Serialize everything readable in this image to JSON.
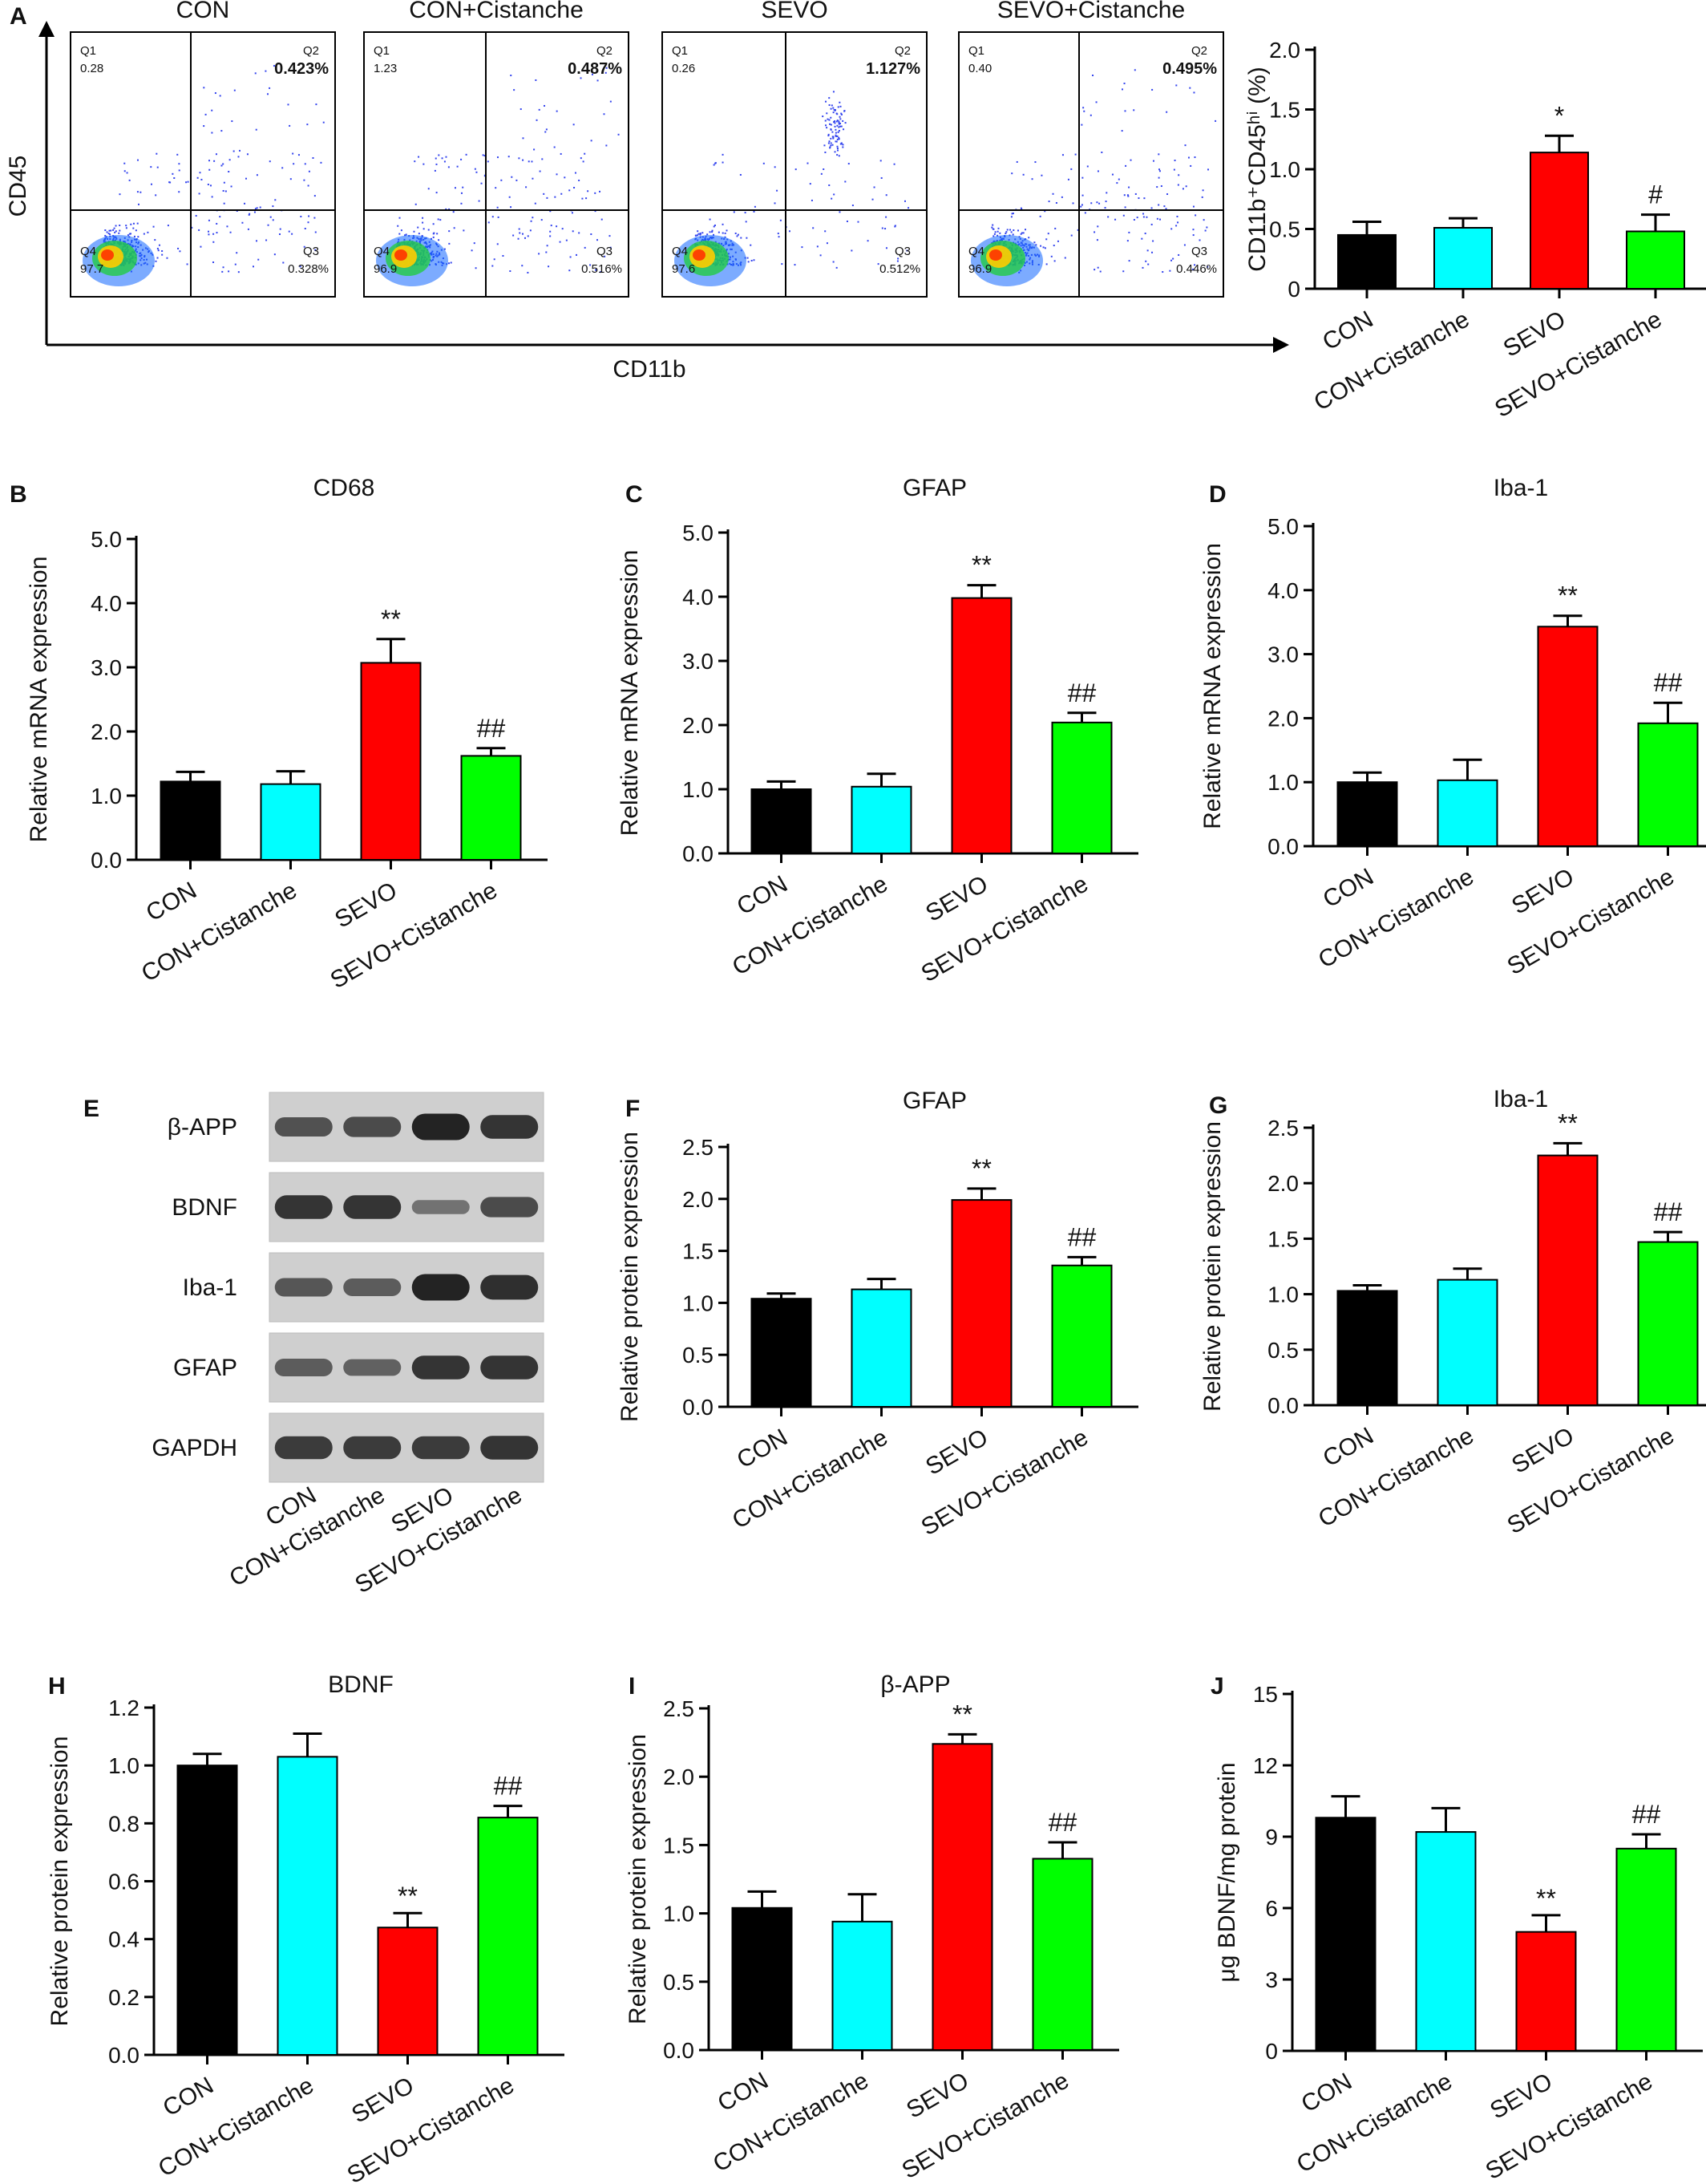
{
  "figure": {
    "panel_letters": [
      "A",
      "B",
      "C",
      "D",
      "E",
      "F",
      "G",
      "H",
      "I",
      "J"
    ],
    "flow": {
      "y_axis_label": "CD45",
      "x_axis_label": "CD11b",
      "plots": [
        {
          "group": "CON",
          "q1": "0.28",
          "q2": "0.423%",
          "q3": "0.328%",
          "q4": "97.7"
        },
        {
          "group": "CON+Cistanche",
          "q1": "1.23",
          "q2": "0.487%",
          "q3": "0.516%",
          "q4": "96.9"
        },
        {
          "group": "SEVO",
          "q1": "0.26",
          "q2": "1.127%",
          "q3": "0.512%",
          "q4": "97.6"
        },
        {
          "group": "SEVO+Cistanche",
          "q1": "0.40",
          "q2": "0.495%",
          "q3": "0.446%",
          "q4": "96.9"
        }
      ]
    },
    "western": {
      "bands": [
        "β-APP",
        "BDNF",
        "Iba-1",
        "GFAP",
        "GAPDH"
      ],
      "lane_labels": [
        "CON",
        "CON+Cistanche",
        "SEVO",
        "SEVO+Cistanche"
      ]
    }
  },
  "colors": {
    "CON": "#000000",
    "CON+Cistanche": "#00ffff",
    "SEVO": "#ff0000",
    "SEVO+Cistanche": "#00ff00",
    "q2_text": "#ff0000",
    "dot": "#3344ee"
  },
  "chart_data": [
    {
      "panel": "A",
      "type": "bar",
      "title": "",
      "ylabel": "CD11b⁺CD45ʰⁱ (%)",
      "categories": [
        "CON",
        "CON+Cistanche",
        "SEVO",
        "SEVO+Cistanche"
      ],
      "values": [
        0.45,
        0.51,
        1.14,
        0.48
      ],
      "errors": [
        0.11,
        0.08,
        0.14,
        0.14
      ],
      "annotations": [
        "",
        "",
        "*",
        "#"
      ],
      "ylim": [
        0,
        2.0
      ],
      "ticks": [
        "0",
        "0.5",
        "1.0",
        "1.5",
        "2.0"
      ]
    },
    {
      "panel": "B",
      "type": "bar",
      "title": "CD68",
      "ylabel": "Relative mRNA expression",
      "categories": [
        "CON",
        "CON+Cistanche",
        "SEVO",
        "SEVO+Cistanche"
      ],
      "values": [
        1.22,
        1.18,
        3.07,
        1.62
      ],
      "errors": [
        0.15,
        0.2,
        0.37,
        0.12
      ],
      "annotations": [
        "",
        "",
        "**",
        "##"
      ],
      "ylim": [
        0,
        5.0
      ],
      "ticks": [
        "0.0",
        "1.0",
        "2.0",
        "3.0",
        "4.0",
        "5.0"
      ]
    },
    {
      "panel": "C",
      "type": "bar",
      "title": "GFAP",
      "ylabel": "Relative mRNA expression",
      "categories": [
        "CON",
        "CON+Cistanche",
        "SEVO",
        "SEVO+Cistanche"
      ],
      "values": [
        1.0,
        1.04,
        3.98,
        2.04
      ],
      "errors": [
        0.12,
        0.2,
        0.2,
        0.15
      ],
      "annotations": [
        "",
        "",
        "**",
        "##"
      ],
      "ylim": [
        0,
        5.0
      ],
      "ticks": [
        "0.0",
        "1.0",
        "2.0",
        "3.0",
        "4.0",
        "5.0"
      ]
    },
    {
      "panel": "D",
      "type": "bar",
      "title": "Iba-1",
      "ylabel": "Relative mRNA expression",
      "categories": [
        "CON",
        "CON+Cistanche",
        "SEVO",
        "SEVO+Cistanche"
      ],
      "values": [
        1.0,
        1.03,
        3.43,
        1.92
      ],
      "errors": [
        0.15,
        0.32,
        0.17,
        0.32
      ],
      "annotations": [
        "",
        "",
        "**",
        "##"
      ],
      "ylim": [
        0,
        5.0
      ],
      "ticks": [
        "0.0",
        "1.0",
        "2.0",
        "3.0",
        "4.0",
        "5.0"
      ]
    },
    {
      "panel": "F",
      "type": "bar",
      "title": "GFAP",
      "ylabel": "Relative protein expression",
      "categories": [
        "CON",
        "CON+Cistanche",
        "SEVO",
        "SEVO+Cistanche"
      ],
      "values": [
        1.04,
        1.13,
        1.99,
        1.36
      ],
      "errors": [
        0.05,
        0.1,
        0.11,
        0.08
      ],
      "annotations": [
        "",
        "",
        "**",
        "##"
      ],
      "ylim": [
        0,
        2.5
      ],
      "ticks": [
        "0.0",
        "0.5",
        "1.0",
        "1.5",
        "2.0",
        "2.5"
      ]
    },
    {
      "panel": "G",
      "type": "bar",
      "title": "Iba-1",
      "ylabel": "Relative protein expression",
      "categories": [
        "CON",
        "CON+Cistanche",
        "SEVO",
        "SEVO+Cistanche"
      ],
      "values": [
        1.03,
        1.13,
        2.25,
        1.47
      ],
      "errors": [
        0.05,
        0.1,
        0.11,
        0.09
      ],
      "annotations": [
        "",
        "",
        "**",
        "##"
      ],
      "ylim": [
        0,
        2.5
      ],
      "ticks": [
        "0.0",
        "0.5",
        "1.0",
        "1.5",
        "2.0",
        "2.5"
      ]
    },
    {
      "panel": "H",
      "type": "bar",
      "title": "BDNF",
      "ylabel": "Relative protein expression",
      "categories": [
        "CON",
        "CON+Cistanche",
        "SEVO",
        "SEVO+Cistanche"
      ],
      "values": [
        1.0,
        1.03,
        0.44,
        0.82
      ],
      "errors": [
        0.04,
        0.08,
        0.05,
        0.04
      ],
      "annotations": [
        "",
        "",
        "**",
        "##"
      ],
      "ylim": [
        0,
        1.2
      ],
      "ticks": [
        "0.0",
        "0.2",
        "0.4",
        "0.6",
        "0.8",
        "1.0",
        "1.2"
      ],
      "annotation_below": [
        false,
        false,
        true,
        false
      ]
    },
    {
      "panel": "I",
      "type": "bar",
      "title": "β-APP",
      "ylabel": "Relative protein expression",
      "categories": [
        "CON",
        "CON+Cistanche",
        "SEVO",
        "SEVO+Cistanche"
      ],
      "values": [
        1.04,
        0.94,
        2.24,
        1.4
      ],
      "errors": [
        0.12,
        0.2,
        0.07,
        0.12
      ],
      "annotations": [
        "",
        "",
        "**",
        "##"
      ],
      "ylim": [
        0,
        2.5
      ],
      "ticks": [
        "0.0",
        "0.5",
        "1.0",
        "1.5",
        "2.0",
        "2.5"
      ]
    },
    {
      "panel": "J",
      "type": "bar",
      "title": "",
      "ylabel": "μg BDNF/mg protein",
      "categories": [
        "CON",
        "CON+Cistanche",
        "SEVO",
        "SEVO+Cistanche"
      ],
      "values": [
        9.8,
        9.2,
        5.0,
        8.5
      ],
      "errors": [
        0.9,
        1.0,
        0.7,
        0.6
      ],
      "annotations": [
        "",
        "",
        "**",
        "##"
      ],
      "ylim": [
        0,
        15
      ],
      "ticks": [
        "0",
        "3",
        "6",
        "9",
        "12",
        "15"
      ],
      "annotation_below": [
        false,
        false,
        true,
        false
      ]
    }
  ]
}
